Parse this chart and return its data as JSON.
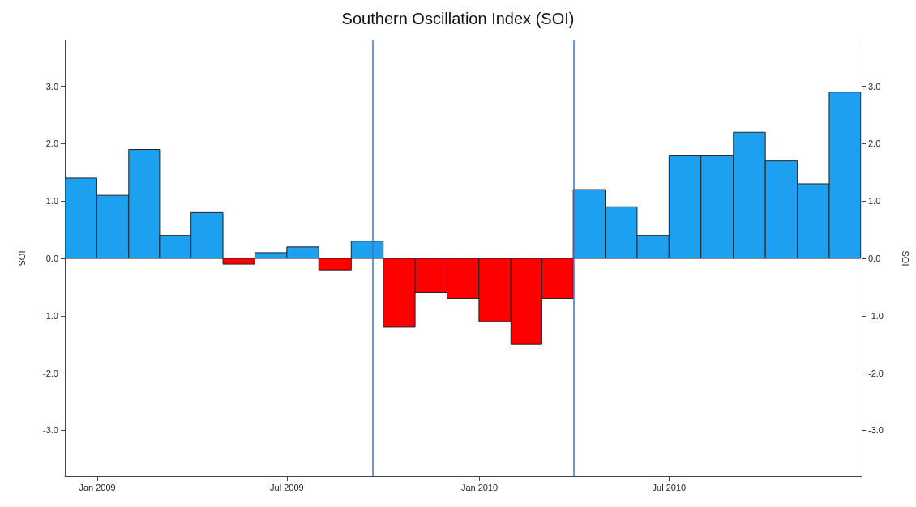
{
  "chart_data": {
    "type": "bar",
    "title": "Southern Oscillation Index (SOI)",
    "ylabel": "SOI",
    "y2label": "SOI",
    "x": [
      "2008-12-16",
      "2009-01-16",
      "2009-02-15",
      "2009-03-16",
      "2009-04-16",
      "2009-05-16",
      "2009-06-16",
      "2009-07-16",
      "2009-08-16",
      "2009-09-16",
      "2009-10-16",
      "2009-11-16",
      "2009-12-16",
      "2010-01-16",
      "2010-02-15",
      "2010-03-16",
      "2010-04-16",
      "2010-05-16",
      "2010-06-16",
      "2010-07-16",
      "2010-08-16",
      "2010-09-16",
      "2010-10-16",
      "2010-11-16",
      "2010-12-16"
    ],
    "values": [
      1.4,
      1.1,
      1.9,
      0.4,
      0.8,
      -0.1,
      0.1,
      0.2,
      -0.2,
      0.3,
      -1.2,
      -0.6,
      -0.7,
      -1.1,
      -1.5,
      -0.7,
      1.2,
      0.9,
      0.4,
      1.8,
      1.8,
      2.2,
      1.7,
      1.3,
      2.9
    ],
    "colors": [
      "#1ea0f0",
      "#1ea0f0",
      "#1ea0f0",
      "#1ea0f0",
      "#1ea0f0",
      "#ff0000",
      "#1ea0f0",
      "#1ea0f0",
      "#ff0000",
      "#1ea0f0",
      "#ff0000",
      "#ff0000",
      "#ff0000",
      "#ff0000",
      "#ff0000",
      "#ff0000",
      "#1ea0f0",
      "#1ea0f0",
      "#1ea0f0",
      "#1ea0f0",
      "#1ea0f0",
      "#1ea0f0",
      "#1ea0f0",
      "#1ea0f0",
      "#1ea0f0"
    ],
    "xlim": [
      "2008-12-01",
      "2011-01-01"
    ],
    "xticks": [
      {
        "value": "2009-01",
        "label": "Jan 2009"
      },
      {
        "value": "2009-07",
        "label": "Jul 2009"
      },
      {
        "value": "2010-01",
        "label": "Jan 2010"
      },
      {
        "value": "2010-07",
        "label": "Jul 2010"
      }
    ],
    "ylim": [
      -3.8,
      3.8
    ],
    "yticks": [
      {
        "value": -3,
        "label": "-3.0"
      },
      {
        "value": -2,
        "label": "-2.0"
      },
      {
        "value": -1,
        "label": "-1.0"
      },
      {
        "value": 0,
        "label": "0.0"
      },
      {
        "value": 1,
        "label": "1.0"
      },
      {
        "value": 2,
        "label": "2.0"
      },
      {
        "value": 3,
        "label": "3.0"
      }
    ],
    "y2lim": [
      -3.8,
      3.8
    ],
    "y2ticks": [
      {
        "value": -3,
        "label": "-3.0"
      },
      {
        "value": -2,
        "label": "-2.0"
      },
      {
        "value": -1,
        "label": "-1.0"
      },
      {
        "value": 0,
        "label": "0.0"
      },
      {
        "value": 1,
        "label": "1.0"
      },
      {
        "value": 2,
        "label": "2.0"
      },
      {
        "value": 3,
        "label": "3.0"
      }
    ],
    "ref_lines": [
      {
        "axis": "x",
        "value": "2009-09-21",
        "color": "#4472c4"
      },
      {
        "axis": "x",
        "value": "2010-04-01",
        "color": "#4472c4"
      }
    ],
    "grid": false
  }
}
